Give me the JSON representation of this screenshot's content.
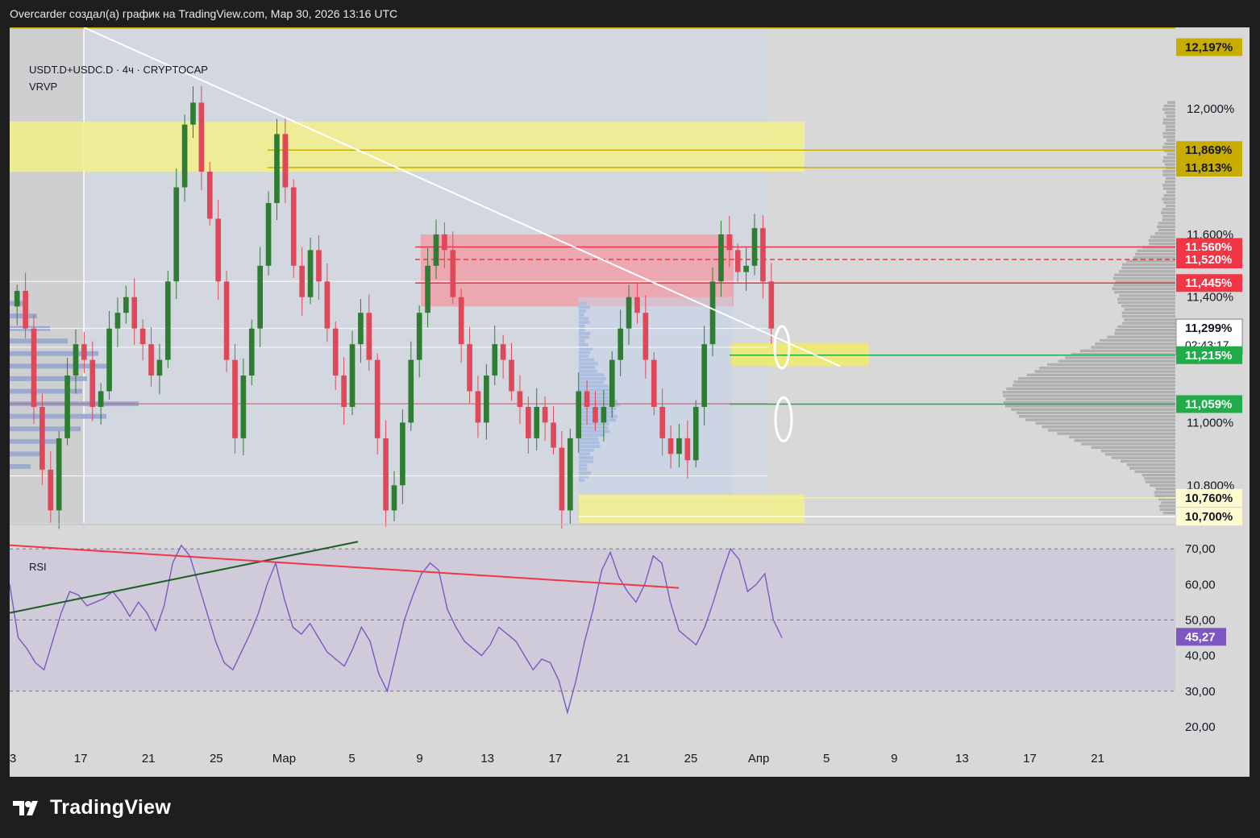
{
  "header": {
    "caption": "Overcarder создал(а) график на TradingView.com, Мар 30, 2026 13:16 UTC"
  },
  "chart": {
    "symbol_line": "USDT.D+USDC.D · 4ч · CRYPTOCAP",
    "indicator": "VRVP",
    "rsi_label": "RSI"
  },
  "brand": {
    "name": "TradingView",
    "icon": "tradingview-logo-icon"
  },
  "colors": {
    "background": "#d8d8d8",
    "up_candle": "#2e7d32",
    "down_candle": "#e0485a",
    "yellow_zone": "#f2f08a",
    "red_zone": "#f0a0a8",
    "rsi_line": "#7e57c2",
    "gold_label": "#c8ad00",
    "red_label": "#f23645",
    "green_label": "#22ab4a"
  },
  "chart_data": {
    "type": "candlestick",
    "title": "USDT.D+USDC.D · 4ч · CRYPTOCAP",
    "ylim": [
      10.68,
      12.26
    ],
    "x_tick_labels": [
      "3",
      "17",
      "21",
      "25",
      "Мар",
      "5",
      "9",
      "13",
      "17",
      "21",
      "25",
      "Апр",
      "5",
      "9",
      "13",
      "17",
      "21"
    ],
    "y_ticks": [
      {
        "value": 12.0,
        "label": "12,000%"
      },
      {
        "value": 11.6,
        "label": "11,600%"
      },
      {
        "value": 11.4,
        "label": "11,400%"
      },
      {
        "value": 11.0,
        "label": "11,000%"
      },
      {
        "value": 10.8,
        "label": "10,800%"
      }
    ],
    "price_tags": [
      {
        "value": 12.197,
        "label": "12,197%",
        "style": "gold"
      },
      {
        "value": 11.869,
        "label": "11,869%",
        "style": "gold"
      },
      {
        "value": 11.813,
        "label": "11,813%",
        "style": "gold"
      },
      {
        "value": 11.56,
        "label": "11,560%",
        "style": "red"
      },
      {
        "value": 11.52,
        "label": "11,520%",
        "style": "red"
      },
      {
        "value": 11.445,
        "label": "11,445%",
        "style": "red"
      },
      {
        "value": 11.299,
        "label": "11,299%",
        "style": "current",
        "sub": "02:43:17"
      },
      {
        "value": 11.215,
        "label": "11,215%",
        "style": "green"
      },
      {
        "value": 11.059,
        "label": "11,059%",
        "style": "green"
      },
      {
        "value": 10.76,
        "label": "10,760%",
        "style": "yellow"
      },
      {
        "value": 10.7,
        "label": "10,700%",
        "style": "yellow"
      }
    ],
    "horizontal_levels": [
      {
        "value": 11.869,
        "color": "#c8ad00",
        "style": "solid"
      },
      {
        "value": 11.813,
        "color": "#c8ad00",
        "style": "solid"
      },
      {
        "value": 11.56,
        "color": "#f23645",
        "style": "solid"
      },
      {
        "value": 11.52,
        "color": "#f23645",
        "style": "dashed"
      },
      {
        "value": 11.445,
        "color": "#f23645",
        "style": "solid"
      },
      {
        "value": 11.215,
        "color": "#22ab4a",
        "style": "solid"
      },
      {
        "value": 11.059,
        "color": "#22ab4a",
        "style": "solid"
      },
      {
        "value": 10.76,
        "color": "#f5f0a0",
        "style": "solid"
      },
      {
        "value": 10.7,
        "color": "#ffffff",
        "style": "solid"
      }
    ],
    "price_path": [
      11.42,
      11.3,
      11.05,
      10.85,
      10.72,
      10.95,
      11.15,
      11.25,
      11.2,
      11.05,
      11.1,
      11.3,
      11.35,
      11.4,
      11.3,
      11.25,
      11.15,
      11.2,
      11.45,
      11.75,
      11.95,
      12.02,
      11.8,
      11.65,
      11.45,
      11.2,
      10.95,
      11.15,
      11.3,
      11.5,
      11.7,
      11.92,
      11.75,
      11.5,
      11.4,
      11.55,
      11.45,
      11.3,
      11.15,
      11.05,
      11.25,
      11.35,
      11.2,
      10.95,
      10.72,
      10.8,
      11.0,
      11.2,
      11.35,
      11.5,
      11.6,
      11.55,
      11.4,
      11.25,
      11.1,
      11.0,
      11.15,
      11.25,
      11.2,
      11.1,
      11.05,
      10.95,
      11.05,
      11.0,
      10.92,
      10.72,
      10.95,
      11.1,
      11.05,
      11.0,
      11.05,
      11.2,
      11.3,
      11.4,
      11.35,
      11.2,
      11.05,
      10.95,
      10.9,
      10.95,
      10.88,
      11.05,
      11.25,
      11.45,
      11.6,
      11.55,
      11.48,
      11.5,
      11.62,
      11.45,
      11.3
    ],
    "rsi": {
      "name": "RSI",
      "ylim": [
        15,
        75
      ],
      "levels": [
        70,
        50,
        30
      ],
      "tick_labels": [
        "70,00",
        "60,00",
        "50,00",
        "40,00",
        "30,00",
        "20,00"
      ],
      "current": {
        "value": 45.27,
        "label": "45,27"
      },
      "values": [
        60,
        45,
        42,
        38,
        36,
        44,
        52,
        58,
        57,
        54,
        55,
        56,
        58,
        55,
        51,
        55,
        52,
        47,
        54,
        66,
        71,
        68,
        60,
        52,
        44,
        38,
        36,
        41,
        46,
        52,
        60,
        66,
        56,
        48,
        46,
        49,
        45,
        41,
        39,
        37,
        42,
        48,
        44,
        35,
        30,
        40,
        50,
        57,
        63,
        66,
        64,
        53,
        48,
        44,
        42,
        40,
        43,
        48,
        46,
        44,
        40,
        36,
        39,
        38,
        33,
        24,
        33,
        44,
        53,
        64,
        69,
        62,
        58,
        55,
        60,
        68,
        66,
        55,
        47,
        45,
        43,
        48,
        55,
        63,
        70,
        67,
        58,
        60,
        63,
        50,
        45
      ]
    }
  }
}
